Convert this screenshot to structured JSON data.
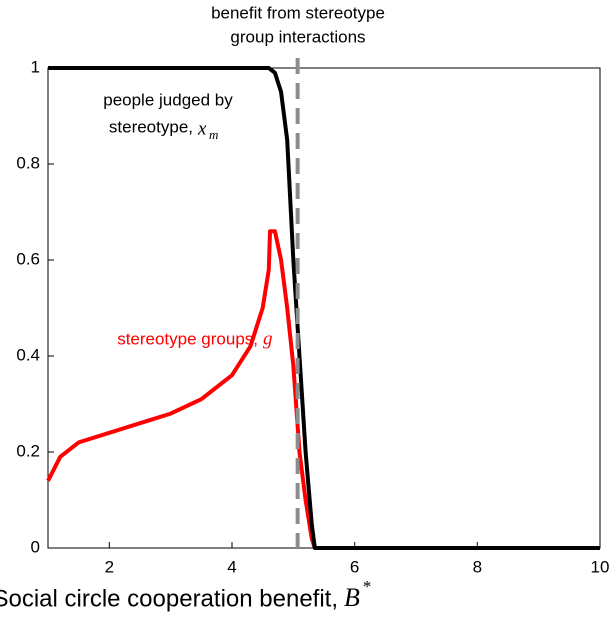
{
  "chart_data": {
    "type": "line",
    "annotation": [
      "benefit from stereotype",
      "group interactions"
    ],
    "xlabel": "Social circle cooperation benefit,",
    "xlabel_symbol": "B",
    "xlabel_sup": "*",
    "xlim": [
      1,
      10
    ],
    "xticks": [
      2,
      4,
      6,
      8,
      10
    ],
    "ylim": [
      0,
      1
    ],
    "yticks": [
      0,
      {
        "value": 0.2,
        "label": "0.2"
      },
      {
        "value": 0.4,
        "label": "0.4"
      },
      {
        "value": 0.6,
        "label": "0.6"
      },
      {
        "value": 0.8,
        "label": "0.8"
      },
      1
    ],
    "vline": 5.07,
    "vline_color": "#8c8c8c",
    "series": [
      {
        "name": [
          "people judged by",
          "stereotype,"
        ],
        "symbol": "x",
        "sub": "m",
        "color": "#000000",
        "x": [
          1,
          4.5,
          4.6,
          4.7,
          4.8,
          4.9,
          5.0,
          5.1,
          5.2,
          5.3,
          5.35,
          10
        ],
        "values": [
          1,
          1,
          1,
          0.99,
          0.95,
          0.85,
          0.6,
          0.4,
          0.2,
          0.05,
          0,
          0
        ]
      },
      {
        "name": [
          "stereotype groups,"
        ],
        "symbol": "g",
        "color": "#ff0000",
        "x": [
          1,
          1.2,
          1.5,
          2,
          2.5,
          3,
          3.5,
          4,
          4.3,
          4.5,
          4.6,
          4.62,
          4.7,
          4.8,
          4.9,
          5.0,
          5.1,
          5.2,
          5.3,
          5.35
        ],
        "values": [
          0.14,
          0.19,
          0.22,
          0.24,
          0.26,
          0.28,
          0.31,
          0.36,
          0.42,
          0.5,
          0.58,
          0.66,
          0.66,
          0.6,
          0.5,
          0.38,
          0.2,
          0.1,
          0.02,
          0
        ]
      }
    ]
  }
}
